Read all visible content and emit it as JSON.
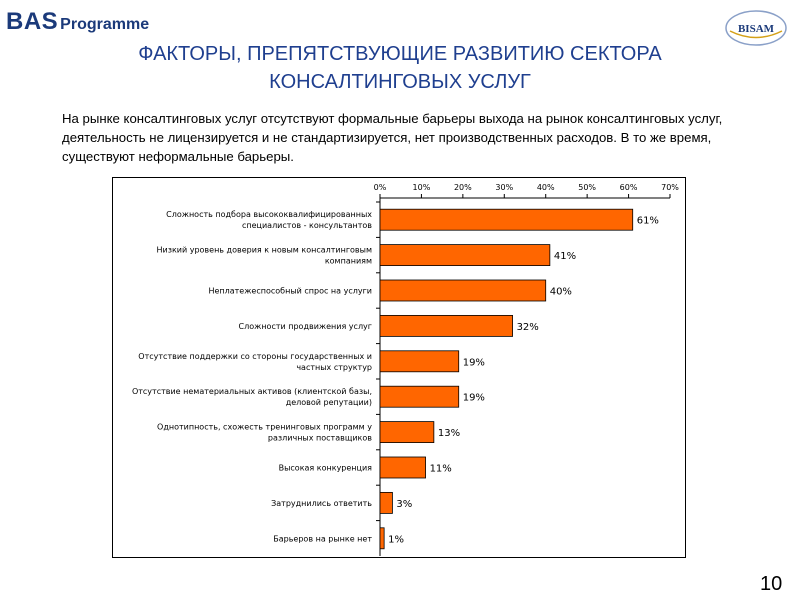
{
  "header": {
    "logo_bas": "BAS",
    "logo_programme": "Programme",
    "partner_logo": "BISAM"
  },
  "slide": {
    "title_line1": "ФАКТОРЫ, ПРЕПЯТСТВУЮЩИЕ РАЗВИТИЮ СЕКТОРА",
    "title_line2": "КОНСАЛТИНГОВЫХ УСЛУГ",
    "intro_text": "На рынке консалтинговых услуг отсутствуют формальные барьеры выхода на рынок консалтинговых услуг, деятельность не лицензируется и не стандартизируется, нет производственных расходов. В то же время, существуют неформальные барьеры.",
    "page_number": "10"
  },
  "colors": {
    "bar_fill": "#ff6600",
    "bar_stroke": "#000000",
    "title_blue": "#1f3f8f",
    "logo_blue": "#1b3a7a"
  },
  "chart_data": {
    "type": "bar",
    "orientation": "horizontal",
    "categories": [
      [
        "Сложность подбора высококвалифицированных",
        "специалистов - консультантов"
      ],
      [
        "Низкий уровень доверия к новым консалтинговым",
        "компаниям"
      ],
      [
        "Неплатежеспособный спрос на услуги"
      ],
      [
        "Сложности продвижения услуг"
      ],
      [
        "Отсутствие поддержки со стороны государственных и",
        "частных структур"
      ],
      [
        "Отсутствие нематериальных активов (клиентской базы,",
        "деловой репутации)"
      ],
      [
        "Однотипность, схожесть тренинговых программ у",
        "различных поставщиков"
      ],
      [
        "Высокая конкуренция"
      ],
      [
        "Затруднились ответить"
      ],
      [
        "Барьеров на рынке нет"
      ]
    ],
    "values": [
      61,
      41,
      40,
      32,
      19,
      19,
      13,
      11,
      3,
      1
    ],
    "data_labels": [
      "61%",
      "41%",
      "40%",
      "32%",
      "19%",
      "19%",
      "13%",
      "11%",
      "3%",
      "1%"
    ],
    "x_ticks": [
      0,
      10,
      20,
      30,
      40,
      50,
      60,
      70
    ],
    "x_tick_labels": [
      "0%",
      "10%",
      "20%",
      "30%",
      "40%",
      "50%",
      "60%",
      "70%"
    ],
    "xlim": [
      0,
      70
    ],
    "x_axis_position": "top",
    "grid": false,
    "legend": "none"
  }
}
